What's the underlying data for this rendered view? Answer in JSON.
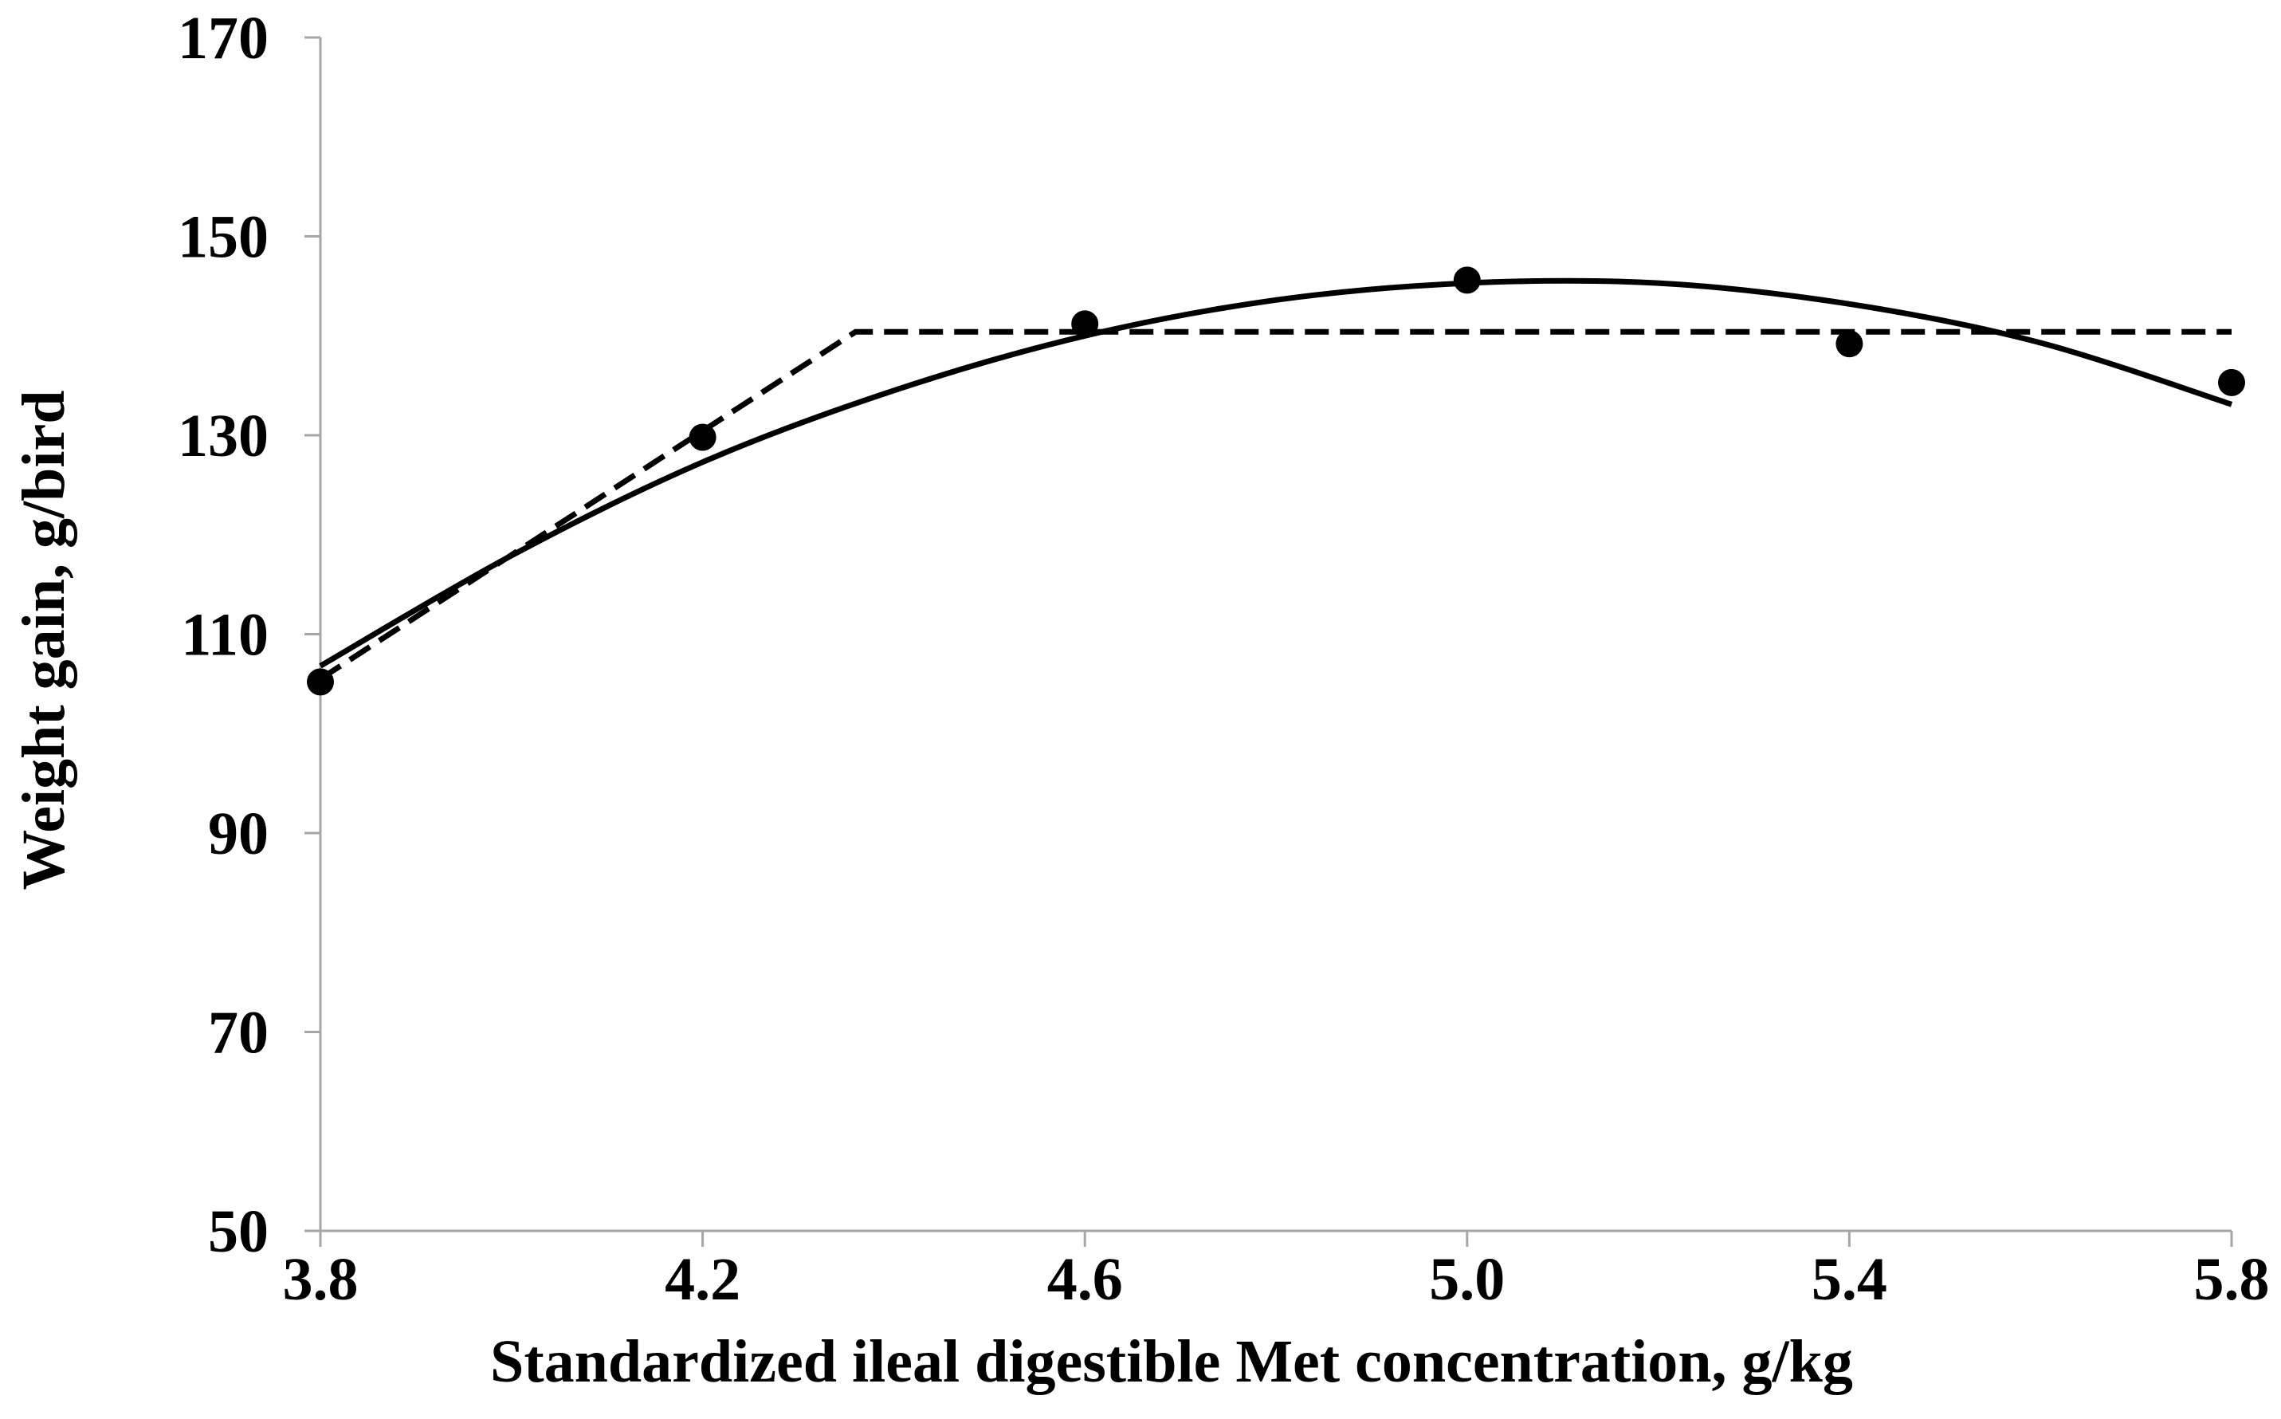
{
  "chart_data": {
    "type": "scatter",
    "xlabel": "Standardized ileal digestible Met concentration, g/kg",
    "ylabel": "Weight gain, g/bird",
    "xlim": [
      3.8,
      5.8
    ],
    "ylim": [
      50,
      170
    ],
    "x_ticks": [
      "3.8",
      "4.2",
      "4.6",
      "5.0",
      "5.4",
      "5.8"
    ],
    "x_tick_values": [
      3.8,
      4.2,
      4.6,
      5.0,
      5.4,
      5.8
    ],
    "y_ticks": [
      "50",
      "70",
      "90",
      "110",
      "130",
      "150",
      "170"
    ],
    "y_tick_values": [
      50,
      70,
      90,
      110,
      130,
      150,
      170
    ],
    "grid": false,
    "legend": "none",
    "series": [
      {
        "kind": "points",
        "marker": "filled-circle",
        "x": [
          3.8,
          4.2,
          4.6,
          5.0,
          5.4,
          5.8
        ],
        "y": [
          105.2,
          129.8,
          141.2,
          145.6,
          139.2,
          135.3
        ]
      },
      {
        "kind": "quadratic-fit",
        "line_style": "solid",
        "x": [
          3.8,
          4.0,
          4.2,
          4.4,
          4.6,
          4.8,
          5.0,
          5.2,
          5.4,
          5.6,
          5.8
        ],
        "y": [
          106.8,
          117.9,
          127.3,
          134.5,
          140.0,
          143.6,
          145.3,
          145.3,
          143.2,
          139.3,
          133.1
        ]
      },
      {
        "kind": "broken-line-fit",
        "line_style": "dashed",
        "x": [
          3.8,
          4.36,
          5.8
        ],
        "y": [
          105.5,
          140.4,
          140.4
        ]
      }
    ],
    "colors": {
      "marks": "#000000",
      "axis": "#a6a6a6",
      "background": "#ffffff"
    }
  }
}
